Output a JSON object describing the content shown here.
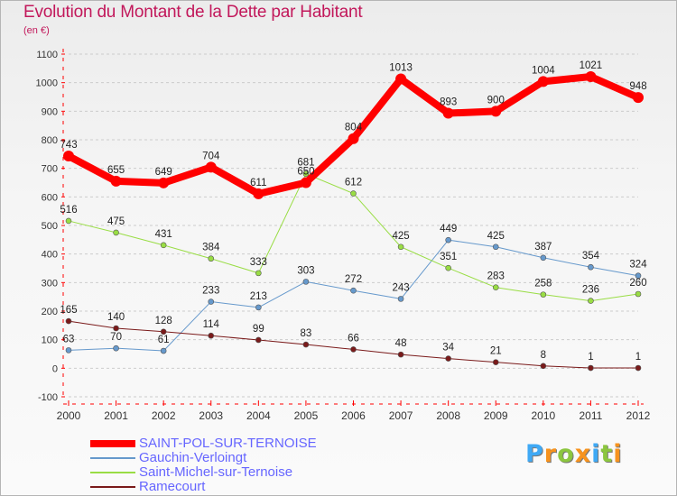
{
  "title": "Evolution du Montant de la Dette par Habitant",
  "subtitle": "(en €)",
  "chart_data": {
    "type": "line",
    "title": "Evolution du Montant de la Dette par Habitant",
    "ylabel": "(en €)",
    "xlabel": "",
    "x": [
      "2000",
      "2001",
      "2002",
      "2003",
      "2004",
      "2005",
      "2006",
      "2007",
      "2008",
      "2009",
      "2010",
      "2011",
      "2012"
    ],
    "ylim": [
      -100,
      1100
    ],
    "yticks": [
      -100,
      0,
      100,
      200,
      300,
      400,
      500,
      600,
      700,
      800,
      900,
      1000,
      1100
    ],
    "grid": "horizontal dashed",
    "legend_position": "bottom-left",
    "series": [
      {
        "name": "SAINT-POL-SUR-TERNOISE",
        "color": "#ff0000",
        "width": 8,
        "values": [
          743,
          655,
          649,
          704,
          611,
          650,
          804,
          1013,
          893,
          900,
          1004,
          1021,
          948
        ],
        "labels": [
          "743",
          "655",
          "649",
          "704",
          "611",
          "650",
          "804",
          "1013",
          "893",
          "900",
          "1004",
          "1021",
          "948"
        ]
      },
      {
        "name": "Gauchin-Verloingt",
        "color": "#6699cc",
        "width": 1,
        "values": [
          63,
          70,
          61,
          233,
          213,
          303,
          272,
          243,
          449,
          425,
          387,
          354,
          324
        ],
        "labels": [
          "63",
          "70",
          "61",
          "233",
          "213",
          "303",
          "272",
          "243",
          "449",
          "425",
          "387",
          "354",
          "324"
        ]
      },
      {
        "name": "Saint-Michel-sur-Ternoise",
        "color": "#99dd44",
        "width": 1,
        "values": [
          516,
          475,
          431,
          384,
          333,
          681,
          612,
          425,
          351,
          283,
          258,
          236,
          260
        ],
        "labels": [
          "516",
          "475",
          "431",
          "384",
          "333",
          "681",
          "612",
          "425",
          "351",
          "283",
          "258",
          "236",
          "260"
        ]
      },
      {
        "name": "Ramecourt",
        "color": "#7a1a1a",
        "width": 1,
        "values": [
          165,
          140,
          128,
          114,
          99,
          83,
          66,
          48,
          34,
          21,
          8,
          1,
          1
        ],
        "labels": [
          "165",
          "140",
          "128",
          "114",
          "99",
          "83",
          "66",
          "48",
          "34",
          "21",
          "8",
          "1",
          "1"
        ]
      }
    ]
  },
  "legend": [
    {
      "label": "SAINT-POL-SUR-TERNOISE",
      "color": "#ff0000",
      "text_color": "#6666ff"
    },
    {
      "label": "Gauchin-Verloingt",
      "color": "#6699cc",
      "text_color": "#6666ff"
    },
    {
      "label": "Saint-Michel-sur-Ternoise",
      "color": "#99dd44",
      "text_color": "#6666ff"
    },
    {
      "label": "Ramecourt",
      "color": "#7a1a1a",
      "text_color": "#6666ff"
    }
  ],
  "logo": {
    "letters": [
      "P",
      "r",
      "o",
      "x",
      "i",
      "t",
      "i"
    ],
    "colors": [
      "#3fa9f5",
      "#f7931e",
      "#8cc63f",
      "#f7931e",
      "#3fa9f5",
      "#8cc63f",
      "#f7931e"
    ]
  }
}
